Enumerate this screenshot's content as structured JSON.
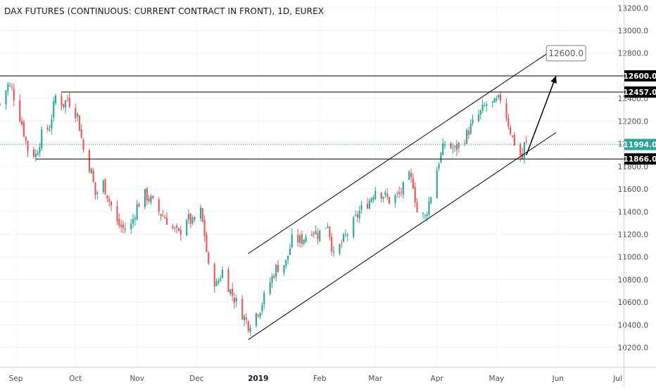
{
  "chart_title": "DAX FUTURES (CONTINUOUS: CURRENT CONTRACT IN FRONT), 1D, EUREX",
  "colors": {
    "up": "#26a69a",
    "down": "#ef5350",
    "grid": "#f0f3fa",
    "axis_text": "#4a4e59",
    "line": "#000000",
    "last_price_line": "#26a69a",
    "badge_bg": "#000000",
    "badge_text": "#ffffff",
    "price_badge_bg": "#26a69a",
    "callout_border": "#7a7e85",
    "callout_text": "#5d606b"
  },
  "chart_data": {
    "type": "candlestick",
    "title": "DAX FUTURES (CONTINUOUS: CURRENT CONTRACT IN FRONT), 1D, EUREX",
    "y_ticks": [
      10200.0,
      10400.0,
      10600.0,
      10800.0,
      11000.0,
      11200.0,
      11400.0,
      11600.0,
      11800.0,
      12000.0,
      12200.0,
      12400.0,
      12800.0,
      13000.0,
      13200.0
    ],
    "ylim": [
      10030,
      13270
    ],
    "x_ticks": [
      {
        "label": "Sep",
        "date": "2018-09-01"
      },
      {
        "label": "Oct",
        "date": "2018-10-01"
      },
      {
        "label": "Nov",
        "date": "2018-11-01"
      },
      {
        "label": "Dec",
        "date": "2018-12-01"
      },
      {
        "label": "2019",
        "date": "2019-01-01",
        "bold": true
      },
      {
        "label": "Feb",
        "date": "2019-02-01"
      },
      {
        "label": "Mar",
        "date": "2019-03-01"
      },
      {
        "label": "Apr",
        "date": "2019-04-01"
      },
      {
        "label": "May",
        "date": "2019-05-01"
      },
      {
        "label": "Jun",
        "date": "2019-06-01"
      },
      {
        "label": "Jul",
        "date": "2019-07-01"
      }
    ],
    "xlim": [
      "2018-08-24",
      "2019-07-04"
    ],
    "close_path": [
      [
        "2018-08-24",
        12350
      ],
      [
        "2018-08-28",
        12520
      ],
      [
        "2018-08-30",
        12480
      ],
      [
        "2018-09-04",
        12180
      ],
      [
        "2018-09-07",
        11950
      ],
      [
        "2018-09-11",
        11900
      ],
      [
        "2018-09-14",
        12080
      ],
      [
        "2018-09-18",
        12150
      ],
      [
        "2018-09-21",
        12420
      ],
      [
        "2018-09-25",
        12350
      ],
      [
        "2018-09-27",
        12400
      ],
      [
        "2018-10-02",
        12250
      ],
      [
        "2018-10-05",
        11950
      ],
      [
        "2018-10-09",
        11750
      ],
      [
        "2018-10-11",
        11550
      ],
      [
        "2018-10-15",
        11650
      ],
      [
        "2018-10-18",
        11500
      ],
      [
        "2018-10-22",
        11300
      ],
      [
        "2018-10-25",
        11250
      ],
      [
        "2018-10-29",
        11280
      ],
      [
        "2018-11-01",
        11450
      ],
      [
        "2018-11-05",
        11550
      ],
      [
        "2018-11-08",
        11500
      ],
      [
        "2018-11-12",
        11400
      ],
      [
        "2018-11-15",
        11350
      ],
      [
        "2018-11-19",
        11250
      ],
      [
        "2018-11-22",
        11200
      ],
      [
        "2018-11-26",
        11350
      ],
      [
        "2018-11-29",
        11300
      ],
      [
        "2018-12-03",
        11400
      ],
      [
        "2018-12-05",
        11200
      ],
      [
        "2018-12-07",
        10900
      ],
      [
        "2018-12-11",
        10750
      ],
      [
        "2018-12-14",
        10880
      ],
      [
        "2018-12-18",
        10700
      ],
      [
        "2018-12-21",
        10600
      ],
      [
        "2018-12-27",
        10400
      ],
      [
        "2019-01-02",
        10550
      ],
      [
        "2019-01-07",
        10780
      ],
      [
        "2019-01-10",
        10900
      ],
      [
        "2019-01-15",
        10950
      ],
      [
        "2019-01-18",
        11150
      ],
      [
        "2019-01-23",
        11150
      ],
      [
        "2019-01-28",
        11250
      ],
      [
        "2019-01-31",
        11200
      ],
      [
        "2019-02-05",
        11300
      ],
      [
        "2019-02-08",
        11000
      ],
      [
        "2019-02-13",
        11150
      ],
      [
        "2019-02-18",
        11300
      ],
      [
        "2019-02-21",
        11400
      ],
      [
        "2019-02-26",
        11500
      ],
      [
        "2019-03-01",
        11600
      ],
      [
        "2019-03-05",
        11550
      ],
      [
        "2019-03-08",
        11500
      ],
      [
        "2019-03-13",
        11550
      ],
      [
        "2019-03-18",
        11700
      ],
      [
        "2019-03-20",
        11650
      ],
      [
        "2019-03-22",
        11400
      ],
      [
        "2019-03-26",
        11350
      ],
      [
        "2019-03-29",
        11550
      ],
      [
        "2019-04-02",
        11850
      ],
      [
        "2019-04-05",
        12000
      ],
      [
        "2019-04-10",
        11950
      ],
      [
        "2019-04-15",
        12050
      ],
      [
        "2019-04-18",
        12150
      ],
      [
        "2019-04-24",
        12300
      ],
      [
        "2019-04-26",
        12350
      ],
      [
        "2019-04-30",
        12350
      ],
      [
        "2019-05-03",
        12400
      ],
      [
        "2019-05-06",
        12250
      ],
      [
        "2019-05-09",
        12050
      ],
      [
        "2019-05-13",
        11900
      ],
      [
        "2019-05-14",
        11870
      ],
      [
        "2019-05-15",
        11990
      ],
      [
        "2019-05-16",
        11994
      ]
    ],
    "horizontal_levels": [
      {
        "price": 12600.0,
        "label": "12600.0",
        "from": "2018-08-24"
      },
      {
        "price": 12457.0,
        "label": "12457.0",
        "from": "2018-09-24"
      },
      {
        "price": 11866.0,
        "label": "11866.0",
        "from": "2018-09-11"
      }
    ],
    "last_price": {
      "price": 11994.0,
      "label": "11994.0"
    },
    "channel_lines": [
      {
        "from": [
          "2018-12-27",
          11030
        ],
        "to": [
          "2019-05-31",
          12850
        ]
      },
      {
        "from": [
          "2018-12-27",
          10270
        ],
        "to": [
          "2019-05-31",
          12100
        ]
      }
    ],
    "projection_arrows": [
      {
        "from": [
          "2019-05-16",
          11900
        ],
        "to": [
          "2019-05-31",
          12600
        ]
      }
    ],
    "callout": {
      "text": "12600.0",
      "date": "2019-06-05",
      "price": 12800
    }
  }
}
